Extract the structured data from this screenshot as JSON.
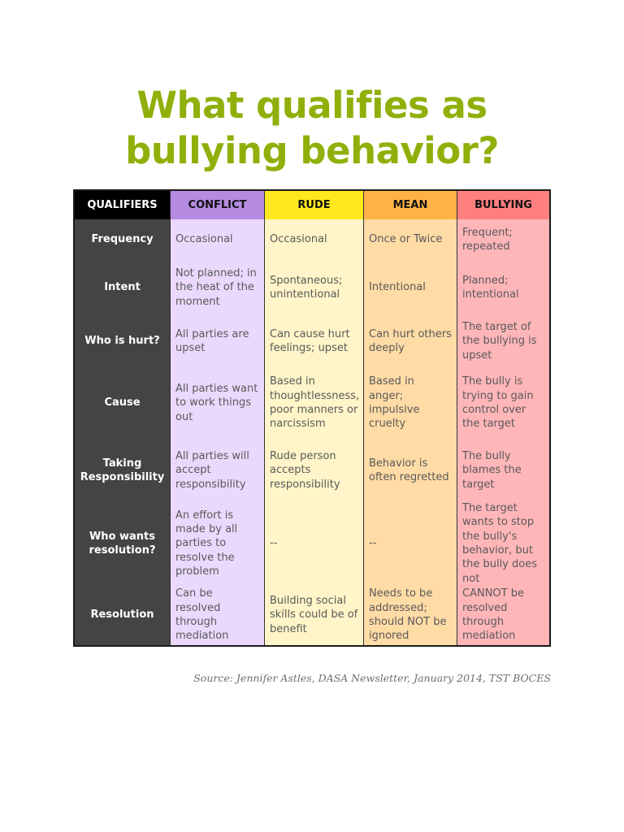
{
  "title": {
    "line1": "What qualifies as",
    "line2": "bullying behavior?"
  },
  "colors": {
    "title": "#8fb00a",
    "qualifiers_header": "#000000",
    "qualifiers_column": "#444444",
    "conflict_header": "#b48be0",
    "conflict_body": "#ead9fd",
    "rude_header": "#ffe81e",
    "rude_body": "#fff5c8",
    "mean_header": "#ffb347",
    "mean_body": "#ffdba6",
    "bullying_header": "#ff7f7f",
    "bullying_body": "#ffb6b9"
  },
  "table": {
    "headers": [
      "QUALIFIERS",
      "CONFLICT",
      "RUDE",
      "MEAN",
      "BULLYING"
    ],
    "rows": [
      {
        "label": "Frequency",
        "conflict": "Occasional",
        "rude": "Occasional",
        "mean": "Once or Twice",
        "bullying": "Frequent; repeated"
      },
      {
        "label": "Intent",
        "conflict": "Not planned; in the heat of the moment",
        "rude": "Spontaneous; unintentional",
        "mean": "Intentional",
        "bullying": "Planned; intentional"
      },
      {
        "label": "Who is hurt?",
        "conflict": "All parties are upset",
        "rude": "Can cause hurt feelings; upset",
        "mean": "Can hurt others deeply",
        "bullying": "The target of the bullying is upset"
      },
      {
        "label": "Cause",
        "conflict": "All parties want to work things out",
        "rude": "Based in thoughtlessness, poor manners or narcissism",
        "mean": "Based in anger; impulsive cruelty",
        "bullying": "The bully is trying to gain control over the target"
      },
      {
        "label": "Taking Responsibility",
        "conflict": "All parties will accept responsibility",
        "rude": "Rude person accepts responsibility",
        "mean": "Behavior is often regretted",
        "bullying": "The bully blames the target"
      },
      {
        "label": "Who wants resolution?",
        "conflict": "An effort is made by all parties to resolve the problem",
        "rude": "--",
        "mean": "--",
        "bullying": "The target wants to stop the bully's behavior, but the bully does not"
      },
      {
        "label": "Resolution",
        "conflict": "Can be resolved through mediation",
        "rude": "Building social skills could be of benefit",
        "mean": "Needs to be addressed; should NOT be ignored",
        "bullying": "CANNOT be resolved through mediation"
      }
    ]
  },
  "source": "Source: Jennifer Astles, DASA Newsletter, January 2014, TST BOCES"
}
